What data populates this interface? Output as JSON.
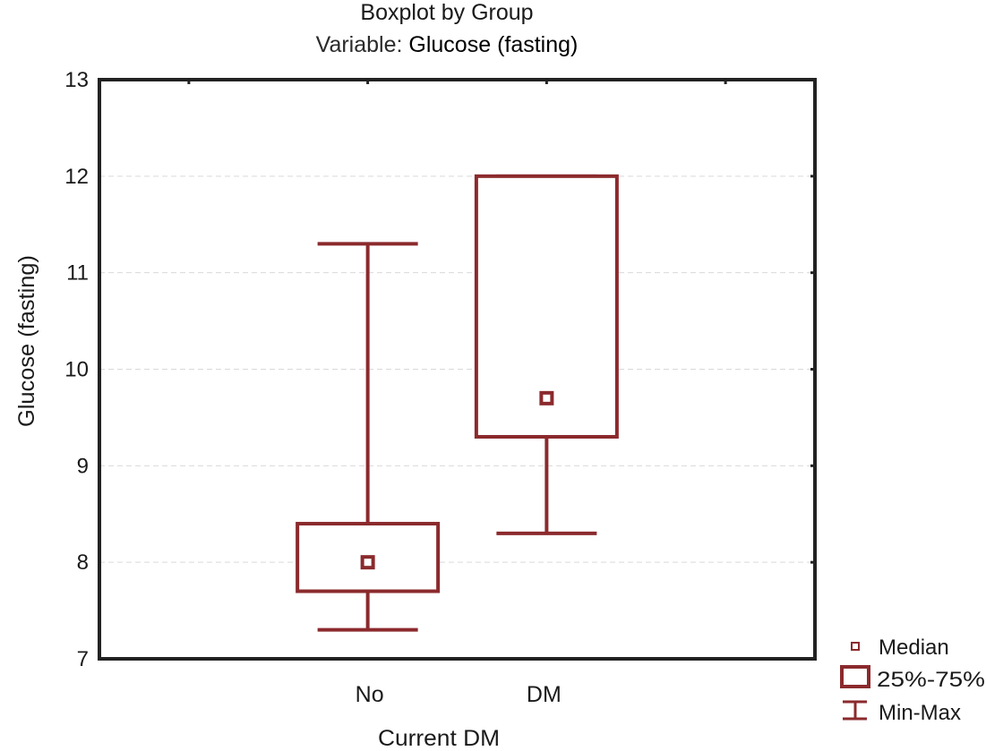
{
  "chart_data": {
    "type": "boxplot",
    "title": "Boxplot by Group",
    "subtitle_prefix": "Variable:",
    "subtitle_variable": "Glucose (fasting)",
    "xlabel": "Current DM",
    "ylabel": "Glucose (fasting)",
    "ylim": [
      7,
      13
    ],
    "yticks": [
      "7",
      "8",
      "9",
      "10",
      "11",
      "12",
      "13"
    ],
    "grid": true,
    "categories": [
      "No",
      "DM"
    ],
    "series": [
      {
        "name": "No",
        "min": 7.3,
        "q1": 7.7,
        "median": 8.0,
        "q3": 8.4,
        "max": 11.3
      },
      {
        "name": "DM",
        "min": 8.3,
        "q1": 9.3,
        "median": 9.7,
        "q3": 12.0,
        "max": 12.0
      }
    ],
    "legend": {
      "placement": "bottom-right",
      "items": [
        "Median",
        "25%-75%",
        "Min-Max"
      ]
    },
    "colors": {
      "box": "#8b2a2d",
      "axis": "#222222",
      "grid": "#d9d9d9"
    }
  }
}
